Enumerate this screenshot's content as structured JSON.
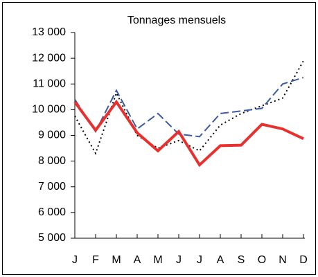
{
  "chart_data": {
    "type": "line",
    "title": "Tonnages mensuels",
    "categories": [
      "J",
      "F",
      "M",
      "A",
      "M",
      "J",
      "J",
      "A",
      "S",
      "O",
      "N",
      "D"
    ],
    "series": [
      {
        "color": "#000000",
        "style": "dotted",
        "values": [
          9750,
          8300,
          10650,
          9000,
          8500,
          8800,
          8400,
          9400,
          9850,
          10150,
          10450,
          11900
        ]
      },
      {
        "color": "#3a5ba0",
        "style": "dashed",
        "values": [
          10400,
          9150,
          10750,
          9250,
          9850,
          9050,
          8950,
          9850,
          9950,
          10050,
          11000,
          11250
        ]
      },
      {
        "color": "#e8302e",
        "style": "solid",
        "values": [
          10300,
          9200,
          10300,
          9100,
          8400,
          9150,
          7850,
          8600,
          8620,
          9430,
          9250,
          8870
        ]
      }
    ],
    "ylim": [
      5000,
      13000
    ],
    "yticks": [
      {
        "value": 5000,
        "label": "5 000"
      },
      {
        "value": 6000,
        "label": "6 000"
      },
      {
        "value": 7000,
        "label": "7 000"
      },
      {
        "value": 8000,
        "label": "8 000"
      },
      {
        "value": 9000,
        "label": "9 000"
      },
      {
        "value": 10000,
        "label": "10 000"
      },
      {
        "value": 11000,
        "label": "11 000"
      },
      {
        "value": 12000,
        "label": "12 000"
      },
      {
        "value": 13000,
        "label": "13 000"
      }
    ],
    "grid": false
  }
}
